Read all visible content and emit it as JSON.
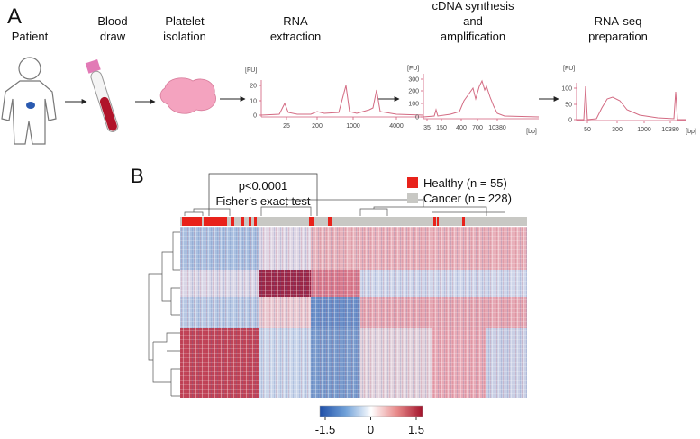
{
  "panel_a": {
    "label": "A",
    "steps": [
      {
        "lines": [
          "Patient"
        ]
      },
      {
        "lines": [
          "Blood",
          "draw"
        ]
      },
      {
        "lines": [
          "Platelet",
          "isolation"
        ]
      },
      {
        "lines": [
          "RNA",
          "extraction"
        ]
      },
      {
        "lines": [
          "cDNA synthesis",
          "and",
          "amplification"
        ]
      },
      {
        "lines": [
          "RNA-seq",
          "preparation"
        ]
      }
    ],
    "plots": [
      {
        "y_unit": "[FU]",
        "yticks": [
          20,
          10,
          0
        ],
        "xticks": [
          25,
          200,
          1000,
          4000
        ]
      },
      {
        "y_unit": "[FU]",
        "yticks": [
          300,
          200,
          100,
          0
        ],
        "xticks": [
          35,
          150,
          400,
          700,
          10380
        ],
        "x_unit": "[bp]"
      },
      {
        "y_unit": "[FU]",
        "yticks": [
          100,
          50,
          0
        ],
        "xticks": [
          50,
          300,
          1000,
          10380
        ],
        "x_unit": "[bp]"
      }
    ]
  },
  "panel_b": {
    "label": "B",
    "test": {
      "p_value": "p<0.0001",
      "name": "Fisher’s exact test"
    },
    "legend": [
      {
        "label": "Healthy (n = 55)",
        "color": "#e8221b"
      },
      {
        "label": "Cancer (n = 228)",
        "color": "#c8c8c4"
      }
    ],
    "colorbar": {
      "ticks": [
        -1.5,
        0,
        1.5
      ]
    }
  }
}
